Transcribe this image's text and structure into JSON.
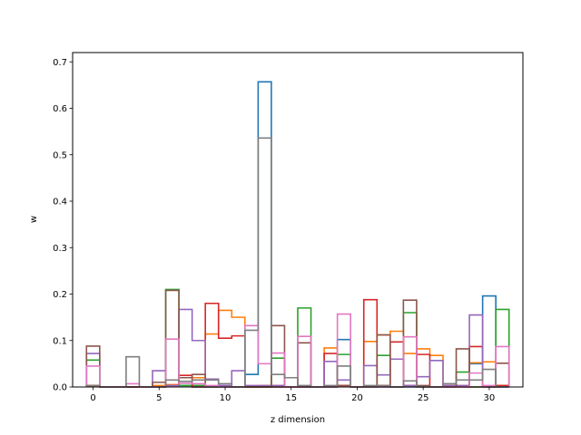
{
  "chart_data": {
    "type": "line",
    "style": "step-histogram",
    "title": "",
    "xlabel": "z dimension",
    "ylabel": "w",
    "xlim": [
      -1.55,
      32.55
    ],
    "ylim": [
      0,
      0.72
    ],
    "x_ticks": [
      0,
      5,
      10,
      15,
      20,
      25,
      30
    ],
    "y_ticks": [
      0.0,
      0.1,
      0.2,
      0.3,
      0.4,
      0.5,
      0.6,
      0.7
    ],
    "y_tick_labels": [
      "0.0",
      "0.1",
      "0.2",
      "0.3",
      "0.4",
      "0.5",
      "0.6",
      "0.7"
    ],
    "grid": false,
    "legend": "none",
    "bins": [
      0,
      1,
      2,
      3,
      4,
      5,
      6,
      7,
      8,
      9,
      10,
      11,
      12,
      13,
      14,
      15,
      16,
      17,
      18,
      19,
      20,
      21,
      22,
      23,
      24,
      25,
      26,
      27,
      28,
      29,
      30,
      31
    ],
    "series": [
      {
        "color": "#1f77b4",
        "values": [
          0.003,
          0,
          0,
          0,
          0,
          0,
          0.003,
          0.003,
          0,
          0,
          0,
          0,
          0.027,
          0.657,
          0,
          0,
          0,
          0,
          0,
          0.102,
          0,
          0,
          0,
          0,
          0,
          0,
          0,
          0,
          0,
          0.05,
          0.196,
          0
        ]
      },
      {
        "color": "#ff7f0e",
        "values": [
          0.003,
          0,
          0,
          0,
          0,
          0.003,
          0.005,
          0.02,
          0.02,
          0.114,
          0.165,
          0.15,
          0,
          0.003,
          0.003,
          0,
          0,
          0,
          0.084,
          0.003,
          0,
          0.098,
          0.112,
          0.12,
          0.072,
          0.082,
          0.068,
          0.003,
          0.003,
          0.052,
          0.054,
          0.003
        ]
      },
      {
        "color": "#2ca02c",
        "values": [
          0.058,
          0,
          0,
          0,
          0,
          0,
          0.21,
          0.003,
          0.003,
          0,
          0,
          0,
          0,
          0,
          0.062,
          0,
          0.17,
          0,
          0,
          0.07,
          0,
          0,
          0.068,
          0,
          0.16,
          0,
          0,
          0,
          0.032,
          0,
          0,
          0.167
        ]
      },
      {
        "color": "#d62728",
        "values": [
          0.003,
          0,
          0,
          0,
          0,
          0,
          0.003,
          0.025,
          0,
          0.18,
          0.105,
          0.11,
          0,
          0,
          0,
          0,
          0,
          0,
          0.072,
          0.003,
          0,
          0.188,
          0.003,
          0.097,
          0.003,
          0.07,
          0,
          0,
          0,
          0.087,
          0,
          0.003
        ]
      },
      {
        "color": "#9467bd",
        "values": [
          0.072,
          0,
          0,
          0,
          0,
          0.035,
          0.003,
          0.167,
          0.1,
          0.017,
          0.003,
          0.035,
          0.003,
          0.003,
          0.003,
          0,
          0,
          0,
          0.055,
          0.015,
          0,
          0.046,
          0.026,
          0.06,
          0.003,
          0.022,
          0.057,
          0.003,
          0.003,
          0.155,
          0,
          0
        ]
      },
      {
        "color": "#8c564b",
        "values": [
          0.088,
          0,
          0,
          0,
          0,
          0.01,
          0.208,
          0.02,
          0.027,
          0,
          0,
          0,
          0,
          0,
          0.132,
          0,
          0.095,
          0,
          0,
          0.003,
          0,
          0,
          0.112,
          0,
          0.187,
          0.003,
          0,
          0,
          0.082,
          0,
          0,
          0.051
        ]
      },
      {
        "color": "#e377c2",
        "values": [
          0.045,
          0,
          0,
          0.007,
          0,
          0,
          0.103,
          0.008,
          0.007,
          0.003,
          0,
          0,
          0.132,
          0.05,
          0.073,
          0,
          0.109,
          0,
          0,
          0.157,
          0,
          0,
          0,
          0,
          0.108,
          0,
          0,
          0,
          0,
          0.03,
          0.003,
          0.087
        ]
      },
      {
        "color": "#7f7f7f",
        "values": [
          0.003,
          0,
          0,
          0.065,
          0,
          0,
          0.015,
          0.012,
          0.015,
          0.015,
          0.007,
          0,
          0.122,
          0.536,
          0.027,
          0.02,
          0.003,
          0,
          0.003,
          0.045,
          0,
          0.003,
          0.003,
          0,
          0.013,
          0,
          0,
          0.007,
          0.015,
          0.015,
          0.038,
          0
        ]
      }
    ]
  }
}
